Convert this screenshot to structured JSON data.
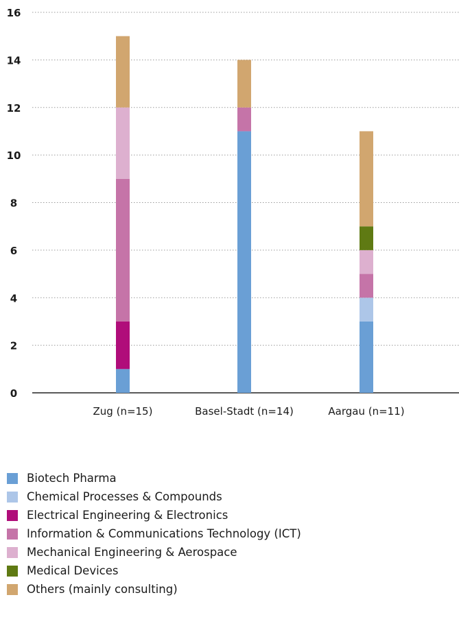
{
  "chart_data": {
    "type": "bar",
    "stacked": true,
    "categories": [
      "Zug (n=15)",
      "Basel-Stadt (n=14)",
      "Aargau (n=11)"
    ],
    "ylim": [
      0,
      16
    ],
    "yticks": [
      0,
      2,
      4,
      6,
      8,
      10,
      12,
      14,
      16
    ],
    "grid": "dotted horizontal",
    "legend_position": "bottom",
    "series": [
      {
        "name": "Biotech Pharma",
        "color": "#6a9fd5",
        "values": [
          1,
          11,
          3
        ]
      },
      {
        "name": "Chemical Processes & Compounds",
        "color": "#adc6e8",
        "values": [
          0,
          0,
          1
        ]
      },
      {
        "name": "Electrical Engineering & Electronics",
        "color": "#b00d7a",
        "values": [
          2,
          0,
          0
        ]
      },
      {
        "name": "Information & Communications Technology (ICT)",
        "color": "#c574a8",
        "values": [
          6,
          1,
          1
        ]
      },
      {
        "name": "Mechanical Engineering & Aerospace",
        "color": "#ddb0cf",
        "values": [
          3,
          0,
          1
        ]
      },
      {
        "name": "Medical Devices",
        "color": "#5f7a13",
        "values": [
          0,
          0,
          1
        ]
      },
      {
        "name": "Others (mainly consulting)",
        "color": "#d1a66f",
        "values": [
          3,
          2,
          4
        ]
      }
    ]
  }
}
